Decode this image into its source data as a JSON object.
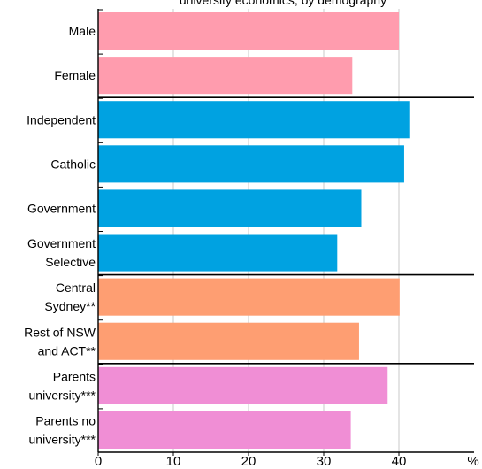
{
  "chart_data": {
    "type": "bar",
    "orientation": "horizontal",
    "title": "university economics, by demography",
    "x_unit_label": "%",
    "xlim": [
      0,
      50
    ],
    "x_ticks": [
      0,
      10,
      20,
      30,
      40
    ],
    "grid": "vertical",
    "categories": [
      {
        "label": [
          "Male"
        ],
        "value": 40.0,
        "group": "gender"
      },
      {
        "label": [
          "Female"
        ],
        "value": 33.8,
        "group": "gender"
      },
      {
        "label": [
          "Independent"
        ],
        "value": 41.5,
        "group": "school"
      },
      {
        "label": [
          "Catholic"
        ],
        "value": 40.7,
        "group": "school"
      },
      {
        "label": [
          "Government"
        ],
        "value": 35.0,
        "group": "school"
      },
      {
        "label": [
          "Government",
          "Selective"
        ],
        "value": 31.8,
        "group": "school"
      },
      {
        "label": [
          "Central",
          "Sydney**"
        ],
        "value": 40.1,
        "group": "location"
      },
      {
        "label": [
          "Rest of NSW",
          "and ACT**"
        ],
        "value": 34.7,
        "group": "location"
      },
      {
        "label": [
          "Parents",
          "university***"
        ],
        "value": 38.5,
        "group": "parents"
      },
      {
        "label": [
          "Parents no",
          "university***"
        ],
        "value": 33.6,
        "group": "parents"
      }
    ],
    "group_colors": {
      "gender": "#FF9CAE",
      "school": "#00A2E1",
      "location": "#FE9E72",
      "parents": "#F08ED5"
    }
  }
}
